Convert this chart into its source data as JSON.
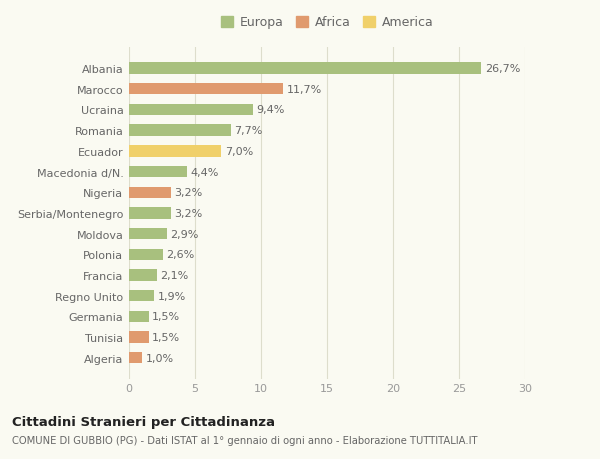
{
  "categories": [
    "Albania",
    "Marocco",
    "Ucraina",
    "Romania",
    "Ecuador",
    "Macedonia d/N.",
    "Nigeria",
    "Serbia/Montenegro",
    "Moldova",
    "Polonia",
    "Francia",
    "Regno Unito",
    "Germania",
    "Tunisia",
    "Algeria"
  ],
  "values": [
    26.7,
    11.7,
    9.4,
    7.7,
    7.0,
    4.4,
    3.2,
    3.2,
    2.9,
    2.6,
    2.1,
    1.9,
    1.5,
    1.5,
    1.0
  ],
  "labels": [
    "26,7%",
    "11,7%",
    "9,4%",
    "7,7%",
    "7,0%",
    "4,4%",
    "3,2%",
    "3,2%",
    "2,9%",
    "2,6%",
    "2,1%",
    "1,9%",
    "1,5%",
    "1,5%",
    "1,0%"
  ],
  "continents": [
    "Europa",
    "Africa",
    "Europa",
    "Europa",
    "America",
    "Europa",
    "Africa",
    "Europa",
    "Europa",
    "Europa",
    "Europa",
    "Europa",
    "Europa",
    "Africa",
    "Africa"
  ],
  "colors": {
    "Europa": "#a8c07e",
    "Africa": "#e09a6e",
    "America": "#f0d06a"
  },
  "background_color": "#fafaf2",
  "title1": "Cittadini Stranieri per Cittadinanza",
  "title2": "COMUNE DI GUBBIO (PG) - Dati ISTAT al 1° gennaio di ogni anno - Elaborazione TUTTITALIA.IT",
  "xlim": [
    0,
    30
  ],
  "xticks": [
    0,
    5,
    10,
    15,
    20,
    25,
    30
  ],
  "label_fontsize": 8.0,
  "bar_label_fontsize": 8.0,
  "legend_fontsize": 9.0,
  "title1_fontsize": 9.5,
  "title2_fontsize": 7.2,
  "bar_height": 0.55
}
